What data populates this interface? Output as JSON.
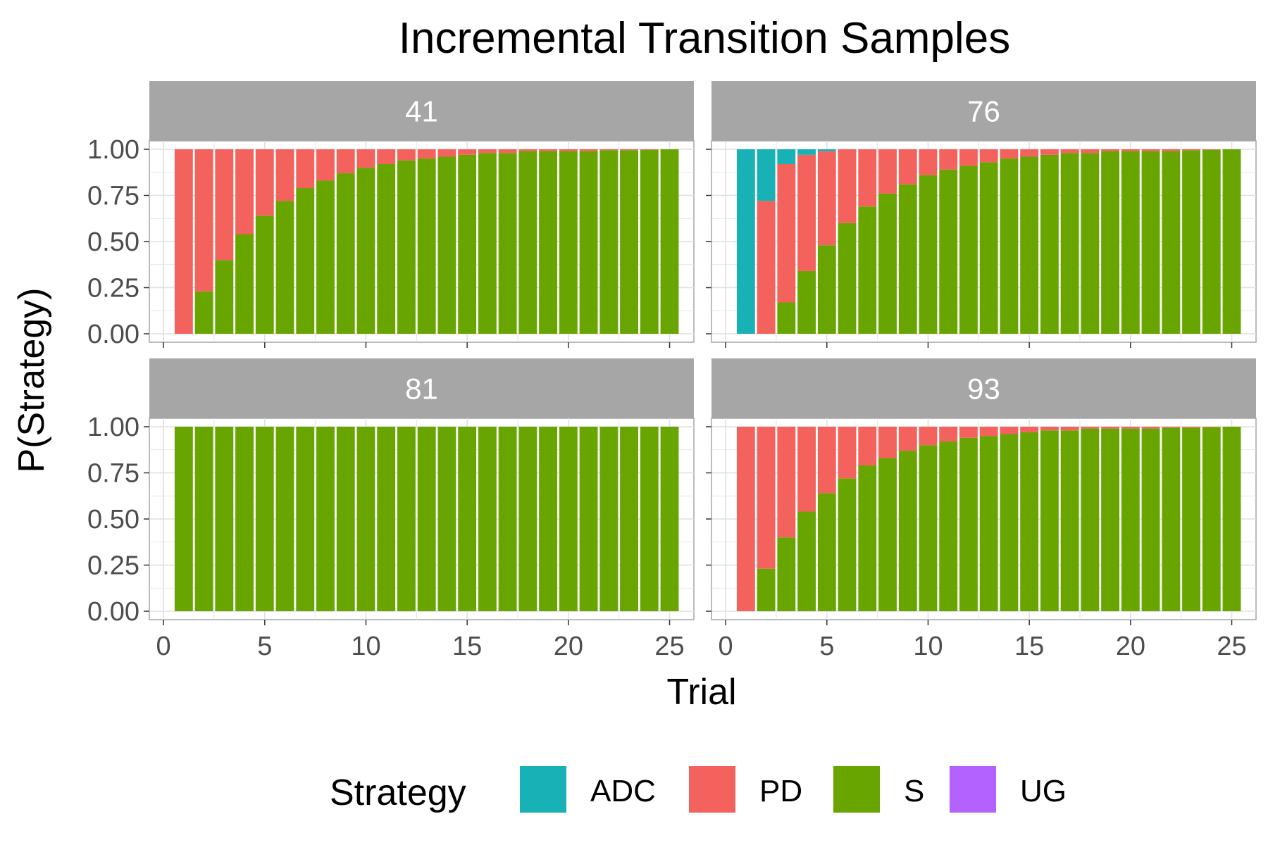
{
  "chart_data": {
    "type": "bar",
    "stacked": true,
    "title": "Incremental Transition Samples",
    "xlabel": "Trial",
    "ylabel": "P(Strategy)",
    "xlim": [
      0,
      25
    ],
    "ylim": [
      0,
      1
    ],
    "x_ticks": [
      0,
      5,
      10,
      15,
      20,
      25
    ],
    "y_ticks": [
      "0.00",
      "0.25",
      "0.50",
      "0.75",
      "1.00"
    ],
    "grid": true,
    "legend": {
      "title": "Strategy",
      "position": "bottom",
      "entries": [
        {
          "name": "ADC",
          "color": "#17B1B6"
        },
        {
          "name": "PD",
          "color": "#F3625D"
        },
        {
          "name": "S",
          "color": "#69A500"
        },
        {
          "name": "UG",
          "color": "#B362FF"
        }
      ]
    },
    "trials": [
      1,
      2,
      3,
      4,
      5,
      6,
      7,
      8,
      9,
      10,
      11,
      12,
      13,
      14,
      15,
      16,
      17,
      18,
      19,
      20,
      21,
      22,
      23,
      24,
      25
    ],
    "panels": [
      {
        "label": "41",
        "series": [
          {
            "name": "S",
            "values": [
              0.0,
              0.23,
              0.4,
              0.54,
              0.64,
              0.72,
              0.79,
              0.83,
              0.87,
              0.9,
              0.92,
              0.94,
              0.95,
              0.96,
              0.97,
              0.98,
              0.98,
              0.99,
              0.99,
              0.99,
              0.99,
              0.995,
              0.995,
              0.997,
              1.0
            ]
          },
          {
            "name": "PD",
            "values": [
              1.0,
              0.77,
              0.6,
              0.46,
              0.36,
              0.28,
              0.21,
              0.17,
              0.13,
              0.1,
              0.08,
              0.06,
              0.05,
              0.04,
              0.03,
              0.02,
              0.02,
              0.01,
              0.01,
              0.01,
              0.01,
              0.005,
              0.005,
              0.003,
              0.0
            ]
          },
          {
            "name": "ADC",
            "values": [
              0,
              0,
              0,
              0,
              0,
              0,
              0,
              0,
              0,
              0,
              0,
              0,
              0,
              0,
              0,
              0,
              0,
              0,
              0,
              0,
              0,
              0,
              0,
              0,
              0
            ]
          },
          {
            "name": "UG",
            "values": [
              0,
              0,
              0,
              0,
              0,
              0,
              0,
              0,
              0,
              0,
              0,
              0,
              0,
              0,
              0,
              0,
              0,
              0,
              0,
              0,
              0,
              0,
              0,
              0,
              0
            ]
          }
        ]
      },
      {
        "label": "76",
        "series": [
          {
            "name": "S",
            "values": [
              0.0,
              0.0,
              0.17,
              0.34,
              0.48,
              0.6,
              0.69,
              0.76,
              0.81,
              0.86,
              0.89,
              0.91,
              0.93,
              0.95,
              0.96,
              0.97,
              0.98,
              0.98,
              0.99,
              0.99,
              0.99,
              0.99,
              0.995,
              0.997,
              1.0
            ]
          },
          {
            "name": "PD",
            "values": [
              0.0,
              0.72,
              0.75,
              0.63,
              0.51,
              0.4,
              0.31,
              0.24,
              0.19,
              0.14,
              0.11,
              0.09,
              0.07,
              0.05,
              0.04,
              0.03,
              0.02,
              0.02,
              0.01,
              0.01,
              0.01,
              0.01,
              0.005,
              0.003,
              0.0
            ]
          },
          {
            "name": "ADC",
            "values": [
              1.0,
              0.28,
              0.08,
              0.03,
              0.01,
              0,
              0,
              0,
              0,
              0,
              0,
              0,
              0,
              0,
              0,
              0,
              0,
              0,
              0,
              0,
              0,
              0,
              0,
              0,
              0
            ]
          },
          {
            "name": "UG",
            "values": [
              0,
              0,
              0,
              0,
              0,
              0,
              0,
              0,
              0,
              0,
              0,
              0,
              0,
              0,
              0,
              0,
              0,
              0,
              0,
              0,
              0,
              0,
              0,
              0,
              0
            ]
          }
        ]
      },
      {
        "label": "81",
        "series": [
          {
            "name": "S",
            "values": [
              1.0,
              1.0,
              1.0,
              1.0,
              1.0,
              1.0,
              1.0,
              1.0,
              1.0,
              1.0,
              1.0,
              1.0,
              1.0,
              1.0,
              1.0,
              1.0,
              1.0,
              1.0,
              1.0,
              1.0,
              1.0,
              1.0,
              1.0,
              1.0,
              1.0
            ]
          },
          {
            "name": "PD",
            "values": [
              0,
              0,
              0,
              0,
              0,
              0,
              0,
              0,
              0,
              0,
              0,
              0,
              0,
              0,
              0,
              0,
              0,
              0,
              0,
              0,
              0,
              0,
              0,
              0,
              0
            ]
          },
          {
            "name": "ADC",
            "values": [
              0,
              0,
              0,
              0,
              0,
              0,
              0,
              0,
              0,
              0,
              0,
              0,
              0,
              0,
              0,
              0,
              0,
              0,
              0,
              0,
              0,
              0,
              0,
              0,
              0
            ]
          },
          {
            "name": "UG",
            "values": [
              0,
              0,
              0,
              0,
              0,
              0,
              0,
              0,
              0,
              0,
              0,
              0,
              0,
              0,
              0,
              0,
              0,
              0,
              0,
              0,
              0,
              0,
              0,
              0,
              0
            ]
          }
        ]
      },
      {
        "label": "93",
        "series": [
          {
            "name": "S",
            "values": [
              0.0,
              0.23,
              0.4,
              0.54,
              0.64,
              0.72,
              0.79,
              0.83,
              0.87,
              0.9,
              0.92,
              0.94,
              0.95,
              0.96,
              0.97,
              0.98,
              0.98,
              0.99,
              0.99,
              0.99,
              0.99,
              0.995,
              0.995,
              0.997,
              1.0
            ]
          },
          {
            "name": "PD",
            "values": [
              1.0,
              0.77,
              0.6,
              0.46,
              0.36,
              0.28,
              0.21,
              0.17,
              0.13,
              0.1,
              0.08,
              0.06,
              0.05,
              0.04,
              0.03,
              0.02,
              0.02,
              0.01,
              0.01,
              0.01,
              0.01,
              0.005,
              0.005,
              0.003,
              0.0
            ]
          },
          {
            "name": "ADC",
            "values": [
              0,
              0,
              0,
              0,
              0,
              0,
              0,
              0,
              0,
              0,
              0,
              0,
              0,
              0,
              0,
              0,
              0,
              0,
              0,
              0,
              0,
              0,
              0,
              0,
              0
            ]
          },
          {
            "name": "UG",
            "values": [
              0,
              0,
              0,
              0,
              0,
              0,
              0,
              0,
              0,
              0,
              0,
              0,
              0,
              0,
              0,
              0,
              0,
              0,
              0,
              0,
              0,
              0,
              0,
              0,
              0
            ]
          }
        ]
      }
    ]
  }
}
